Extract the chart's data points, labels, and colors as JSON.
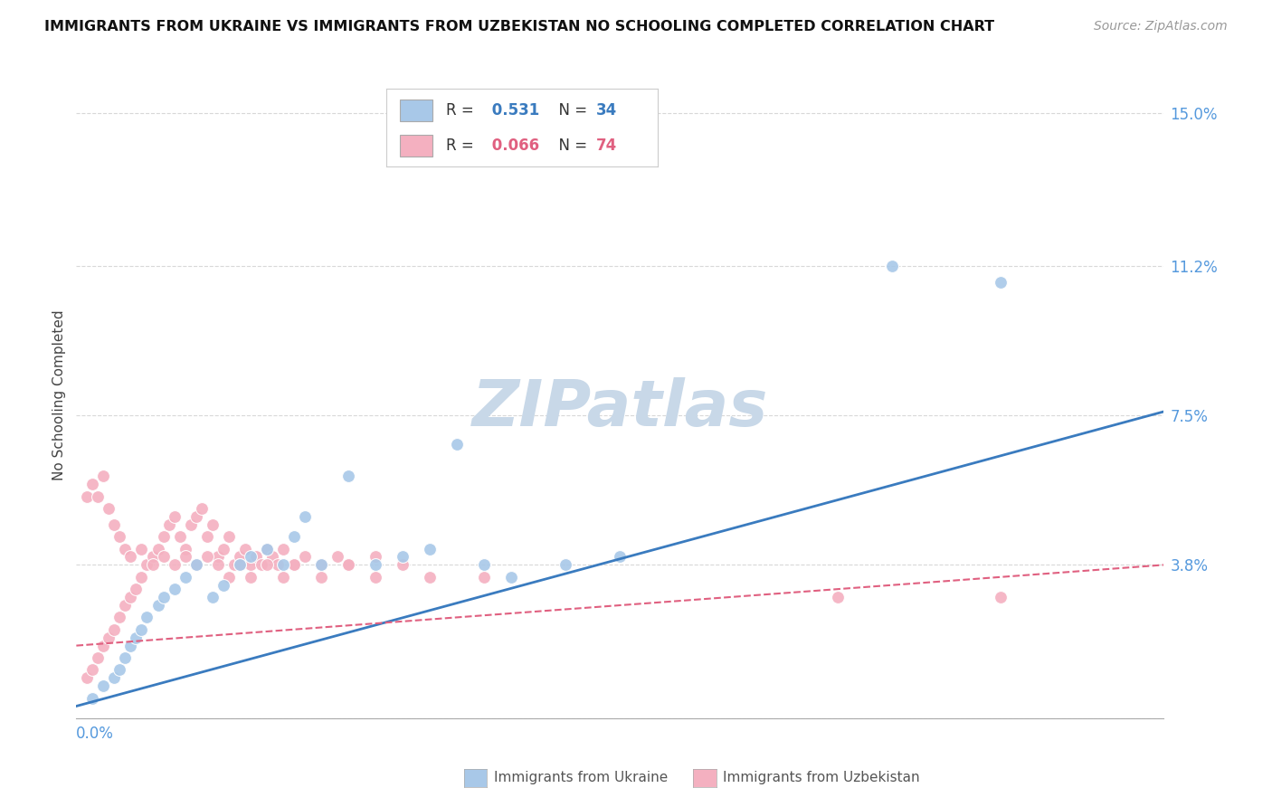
{
  "title": "IMMIGRANTS FROM UKRAINE VS IMMIGRANTS FROM UZBEKISTAN NO SCHOOLING COMPLETED CORRELATION CHART",
  "source": "Source: ZipAtlas.com",
  "ylabel": "No Schooling Completed",
  "x_min": 0.0,
  "x_max": 0.2,
  "y_min": 0.0,
  "y_max": 0.16,
  "y_ticks": [
    0.0,
    0.038,
    0.075,
    0.112,
    0.15
  ],
  "y_tick_labels": [
    "",
    "3.8%",
    "7.5%",
    "11.2%",
    "15.0%"
  ],
  "ukraine_color": "#a8c8e8",
  "uzbekistan_color": "#f4b0c0",
  "ukraine_line_color": "#3a7bbf",
  "uzbekistan_line_color": "#e06080",
  "ukraine_R": "0.531",
  "ukraine_N": "34",
  "uzbekistan_R": "0.066",
  "uzbekistan_N": "74",
  "ukraine_line_start_y": 0.003,
  "ukraine_line_end_y": 0.076,
  "uzbekistan_line_start_y": 0.018,
  "uzbekistan_line_end_y": 0.038,
  "ukraine_scatter_x": [
    0.003,
    0.005,
    0.007,
    0.008,
    0.009,
    0.01,
    0.011,
    0.012,
    0.013,
    0.015,
    0.016,
    0.018,
    0.02,
    0.022,
    0.025,
    0.027,
    0.03,
    0.032,
    0.035,
    0.038,
    0.04,
    0.042,
    0.045,
    0.05,
    0.055,
    0.06,
    0.065,
    0.07,
    0.075,
    0.08,
    0.09,
    0.1,
    0.15,
    0.17
  ],
  "ukraine_scatter_y": [
    0.005,
    0.008,
    0.01,
    0.012,
    0.015,
    0.018,
    0.02,
    0.022,
    0.025,
    0.028,
    0.03,
    0.032,
    0.035,
    0.038,
    0.03,
    0.033,
    0.038,
    0.04,
    0.042,
    0.038,
    0.045,
    0.05,
    0.038,
    0.06,
    0.038,
    0.04,
    0.042,
    0.068,
    0.038,
    0.035,
    0.038,
    0.04,
    0.112,
    0.108
  ],
  "uzbekistan_scatter_x": [
    0.002,
    0.003,
    0.004,
    0.005,
    0.006,
    0.007,
    0.008,
    0.009,
    0.01,
    0.011,
    0.012,
    0.013,
    0.014,
    0.015,
    0.016,
    0.017,
    0.018,
    0.019,
    0.02,
    0.021,
    0.022,
    0.023,
    0.024,
    0.025,
    0.026,
    0.027,
    0.028,
    0.029,
    0.03,
    0.031,
    0.032,
    0.033,
    0.034,
    0.035,
    0.036,
    0.037,
    0.038,
    0.04,
    0.042,
    0.045,
    0.048,
    0.05,
    0.055,
    0.06,
    0.002,
    0.003,
    0.004,
    0.005,
    0.006,
    0.007,
    0.008,
    0.009,
    0.01,
    0.012,
    0.014,
    0.016,
    0.018,
    0.02,
    0.022,
    0.024,
    0.026,
    0.028,
    0.03,
    0.032,
    0.035,
    0.038,
    0.04,
    0.045,
    0.05,
    0.055,
    0.065,
    0.075,
    0.14,
    0.17
  ],
  "uzbekistan_scatter_y": [
    0.01,
    0.012,
    0.015,
    0.018,
    0.02,
    0.022,
    0.025,
    0.028,
    0.03,
    0.032,
    0.035,
    0.038,
    0.04,
    0.042,
    0.045,
    0.048,
    0.05,
    0.045,
    0.042,
    0.048,
    0.05,
    0.052,
    0.045,
    0.048,
    0.04,
    0.042,
    0.045,
    0.038,
    0.04,
    0.042,
    0.038,
    0.04,
    0.038,
    0.042,
    0.04,
    0.038,
    0.042,
    0.038,
    0.04,
    0.038,
    0.04,
    0.038,
    0.04,
    0.038,
    0.055,
    0.058,
    0.055,
    0.06,
    0.052,
    0.048,
    0.045,
    0.042,
    0.04,
    0.042,
    0.038,
    0.04,
    0.038,
    0.04,
    0.038,
    0.04,
    0.038,
    0.035,
    0.038,
    0.035,
    0.038,
    0.035,
    0.038,
    0.035,
    0.038,
    0.035,
    0.035,
    0.035,
    0.03,
    0.03
  ],
  "watermark_text": "ZIPatlas",
  "watermark_color": "#c8d8e8",
  "background_color": "#ffffff",
  "grid_color": "#d8d8d8"
}
